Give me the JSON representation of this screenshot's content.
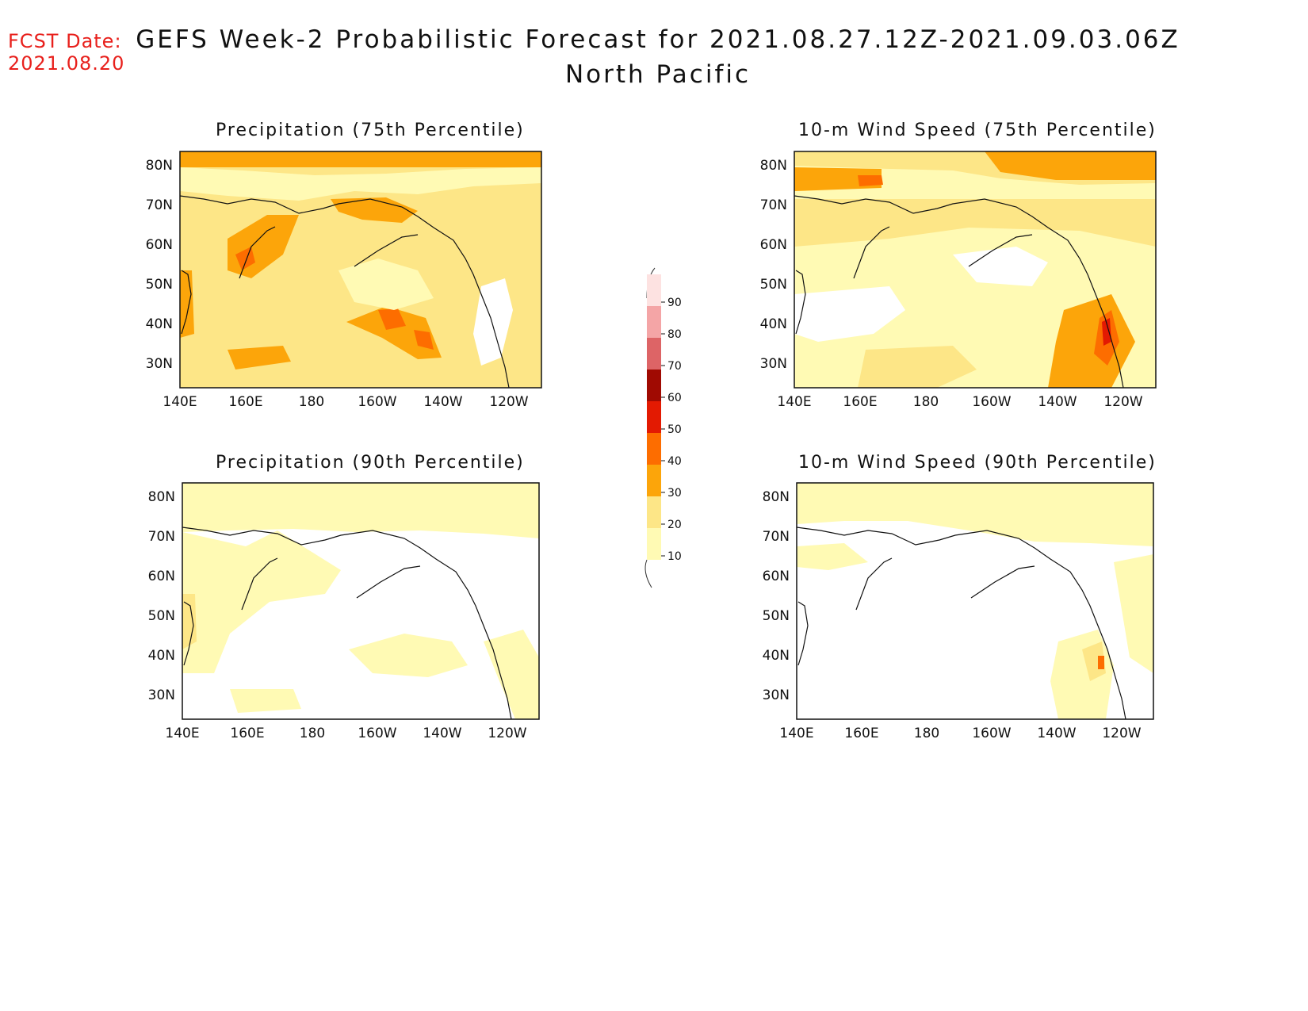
{
  "header": {
    "fcst_label": "FCST Date:",
    "fcst_date": "2021.08.20",
    "title": "GEFS Week-2 Probabilistic Forecast for 2021.08.27.12Z-2021.09.03.06Z",
    "subtitle": "North Pacific"
  },
  "panels": [
    {
      "title": "Precipitation (75th Percentile)"
    },
    {
      "title": "10-m Wind Speed (75th Percentile)"
    },
    {
      "title": "Precipitation (90th Percentile)"
    },
    {
      "title": "10-m Wind Speed (90th Percentile)"
    }
  ],
  "axes": {
    "lat_labels": [
      "30N",
      "40N",
      "50N",
      "60N",
      "70N",
      "80N"
    ],
    "lon_labels": [
      "140E",
      "160E",
      "180",
      "160W",
      "140W",
      "120W"
    ],
    "lat_range": [
      25,
      85
    ],
    "lon_range": [
      140,
      250
    ]
  },
  "colorbar": {
    "levels": [
      "10",
      "20",
      "30",
      "40",
      "50",
      "60",
      "70",
      "80",
      "90"
    ],
    "colors": [
      "#fffab4",
      "#fde687",
      "#fca50a",
      "#fd6d00",
      "#e31a02",
      "#a00a02",
      "#dd6466",
      "#f4a5a6",
      "#fde2e1"
    ]
  }
}
